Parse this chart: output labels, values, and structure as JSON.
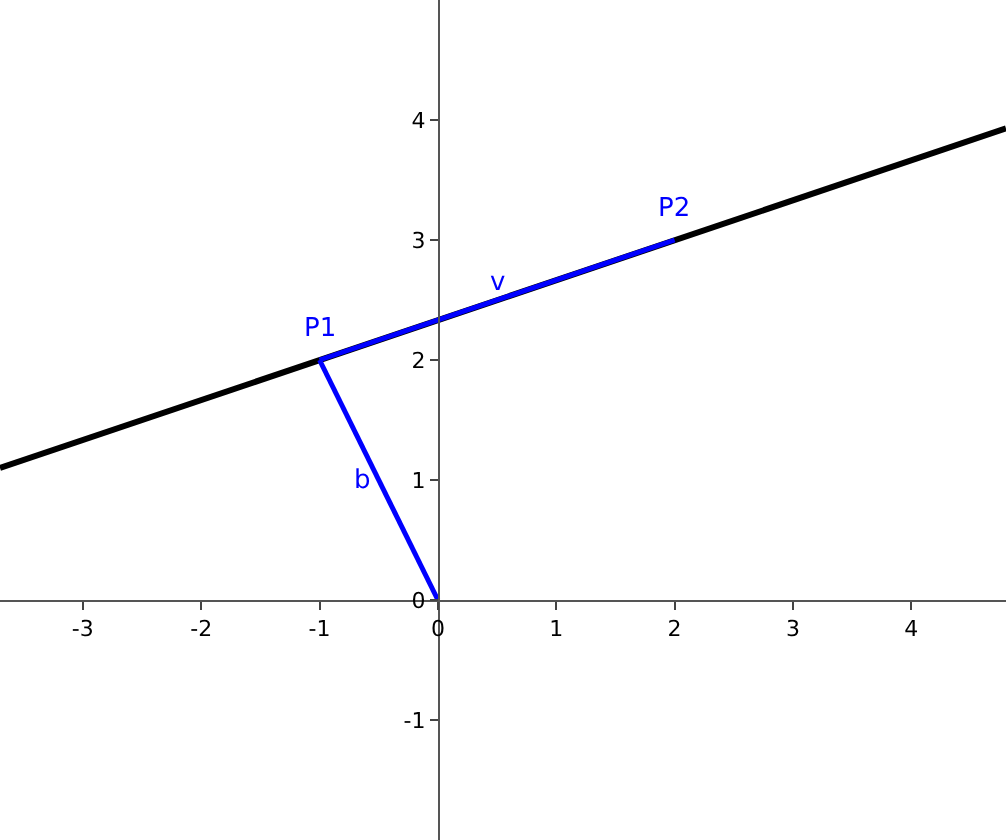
{
  "chart_data": {
    "type": "line",
    "xlim": [
      -3.7,
      4.8
    ],
    "ylim": [
      -2,
      5
    ],
    "xticks": [
      -3,
      -2,
      -1,
      0,
      1,
      2,
      3,
      4
    ],
    "yticks": [
      -1,
      0,
      1,
      2,
      3,
      4
    ],
    "legend": false,
    "marker": "none",
    "line_style": "solid",
    "series": [
      {
        "color": "#000000",
        "x": [
          -3.7,
          4.8
        ],
        "values": [
          1.1,
          3.93
        ]
      },
      {
        "name": "b",
        "color": "#0000ff",
        "x": [
          0,
          -1
        ],
        "values": [
          0,
          2
        ]
      },
      {
        "name": "v",
        "color": "#0000ff",
        "x": [
          -1,
          2
        ],
        "values": [
          2,
          3
        ]
      }
    ],
    "annotations": [
      {
        "text": "P1",
        "x": -1,
        "y": 2
      },
      {
        "text": "P2",
        "x": 2,
        "y": 3
      }
    ]
  }
}
